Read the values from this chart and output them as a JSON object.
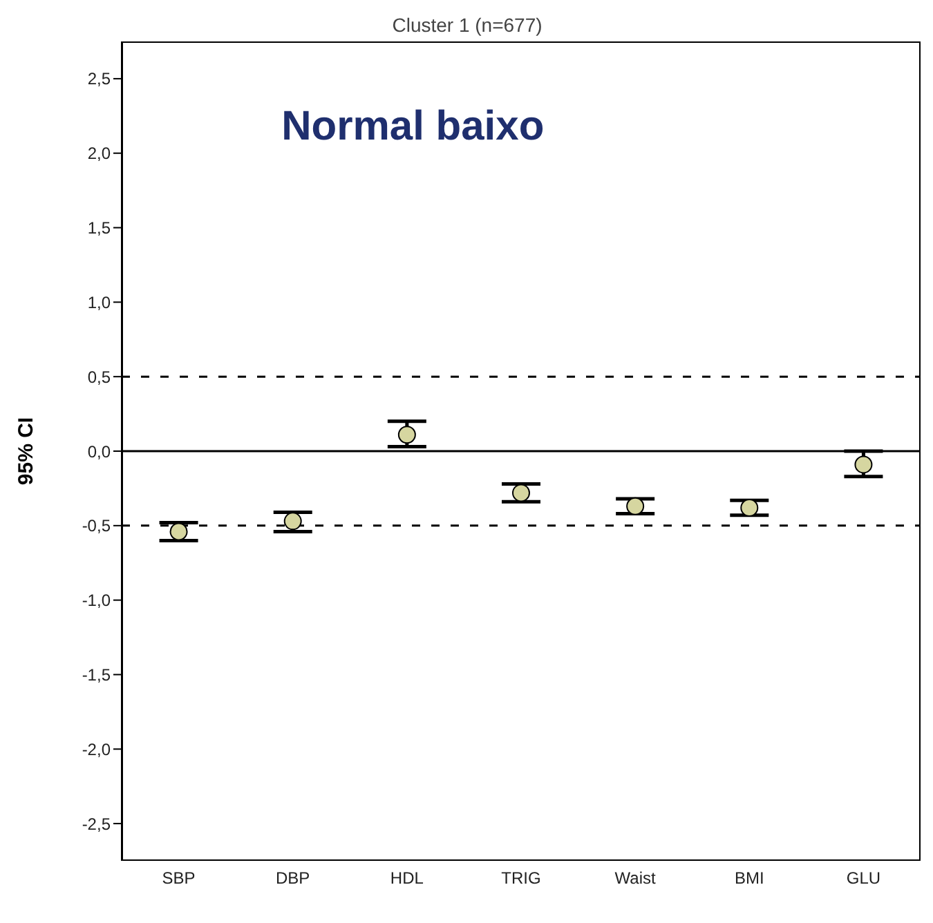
{
  "chart_data": {
    "type": "scatter",
    "title": "Cluster 1 (n=677)",
    "ylabel": "95% CI",
    "annotations": [
      "Normal baixo"
    ],
    "categories": [
      "SBP",
      "DBP",
      "HDL",
      "TRIG",
      "Waist",
      "BMI",
      "GLU"
    ],
    "values": [
      -0.54,
      -0.47,
      0.11,
      -0.28,
      -0.37,
      -0.38,
      -0.09
    ],
    "errors": [
      [
        -0.6,
        -0.48
      ],
      [
        -0.54,
        -0.41
      ],
      [
        0.03,
        0.2
      ],
      [
        -0.34,
        -0.22
      ],
      [
        -0.42,
        -0.32
      ],
      [
        -0.43,
        -0.33
      ],
      [
        -0.17,
        0.0
      ]
    ],
    "color": "#d6d6a0",
    "marker": "circle",
    "ylim": [
      -2.75,
      2.75
    ],
    "yticks": [
      {
        "value": -2.5,
        "label": "-2,5"
      },
      {
        "value": -2,
        "label": "-2,0"
      },
      {
        "value": -1.5,
        "label": "-1,5"
      },
      {
        "value": -1,
        "label": "-1,0"
      },
      {
        "value": -0.5,
        "label": "-0,5"
      },
      {
        "value": 0,
        "label": "0,0"
      },
      {
        "value": 0.5,
        "label": "0,5"
      },
      {
        "value": 1,
        "label": "1,0"
      },
      {
        "value": 1.5,
        "label": "1,5"
      },
      {
        "value": 2,
        "label": "2,0"
      },
      {
        "value": 2.5,
        "label": "2,5"
      }
    ],
    "ref_lines": [
      {
        "axis": "y",
        "value": 0.5,
        "line_style": "dashed"
      },
      {
        "axis": "y",
        "value": 0,
        "line_style": "solid"
      },
      {
        "axis": "y",
        "value": -0.5,
        "line_style": "dashed"
      }
    ]
  }
}
